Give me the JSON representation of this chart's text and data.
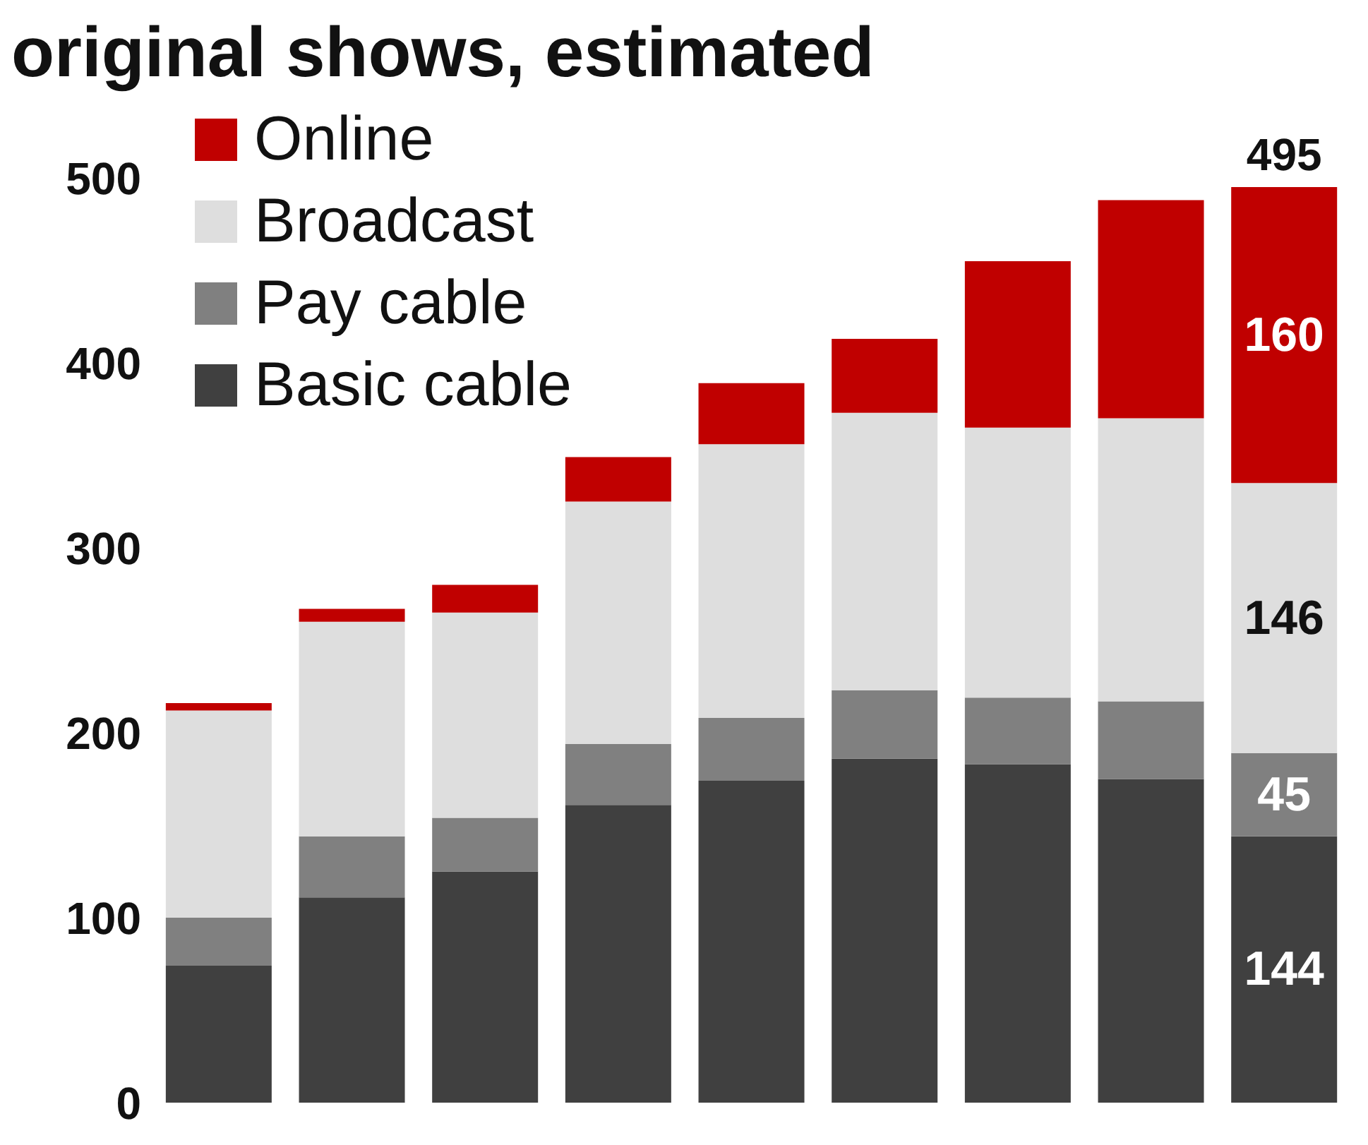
{
  "chart_data": {
    "type": "bar",
    "title": "original shows, estimated",
    "categories": [
      null,
      null,
      null,
      null,
      null,
      null,
      null,
      null,
      null
    ],
    "stacked": true,
    "series": [
      {
        "name": "Basic cable",
        "color": "#404040",
        "values": [
          74,
          111,
          125,
          161,
          174,
          186,
          183,
          175,
          144
        ],
        "value_labels": [
          null,
          null,
          null,
          null,
          null,
          null,
          null,
          null,
          "144"
        ]
      },
      {
        "name": "Pay cable",
        "color": "#808080",
        "values": [
          26,
          33,
          29,
          33,
          34,
          37,
          36,
          42,
          45
        ],
        "value_labels": [
          null,
          null,
          null,
          null,
          null,
          null,
          null,
          null,
          "45"
        ]
      },
      {
        "name": "Broadcast",
        "color": "#dedede",
        "values": [
          112,
          116,
          111,
          131,
          148,
          150,
          146,
          153,
          146
        ],
        "value_labels": [
          null,
          null,
          null,
          null,
          null,
          null,
          null,
          null,
          "146"
        ]
      },
      {
        "name": "Online",
        "color": "#c00000",
        "values": [
          4,
          7,
          15,
          24,
          33,
          40,
          90,
          118,
          160
        ],
        "value_labels": [
          null,
          null,
          null,
          null,
          null,
          null,
          null,
          null,
          "160"
        ]
      }
    ],
    "totals": [
      null,
      null,
      null,
      null,
      null,
      null,
      null,
      null,
      "495"
    ],
    "ylim": [
      0,
      500
    ],
    "yticks": [
      0,
      100,
      200,
      300,
      400,
      500
    ],
    "grid": false,
    "legend": "top left",
    "tick_labels": "y"
  }
}
